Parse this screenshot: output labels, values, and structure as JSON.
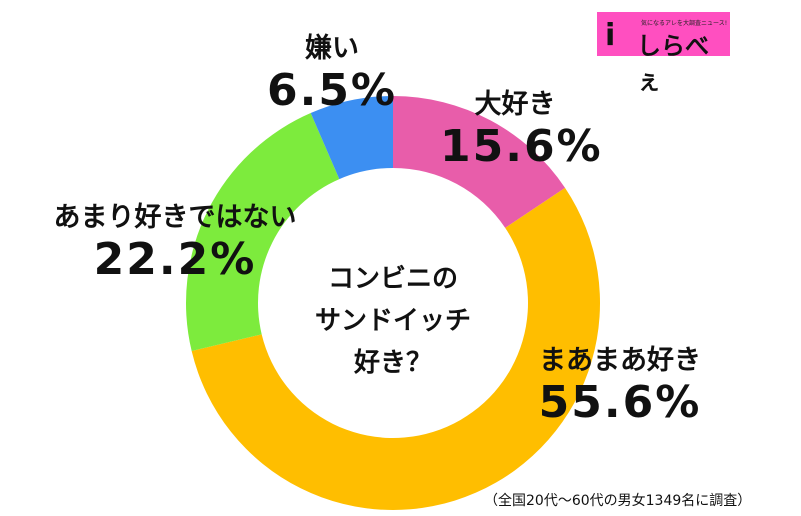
{
  "logo": {
    "tagline": "気になるアレを大調査ニュース!",
    "name": "しらべぇ",
    "mark": "i"
  },
  "note": "（全国20代～60代の男女1349名に調査）",
  "chart_data": {
    "type": "pie",
    "donut": true,
    "title": "コンビニのサンドイッチ好き？",
    "title_lines": [
      "コンビニの",
      "サンドイッチ",
      "好き？"
    ],
    "categories": [
      "大好き",
      "まあまあ好き",
      "あまり好きではない",
      "嫌い"
    ],
    "values": [
      15.6,
      55.6,
      22.2,
      6.5
    ],
    "labels": [
      "15.6%",
      "55.6%",
      "22.2%",
      "6.5%"
    ],
    "colors": [
      "#E85DAA",
      "#FFBE00",
      "#7DEB3D",
      "#3C8FF2"
    ],
    "start": "top",
    "direction": "clockwise"
  }
}
